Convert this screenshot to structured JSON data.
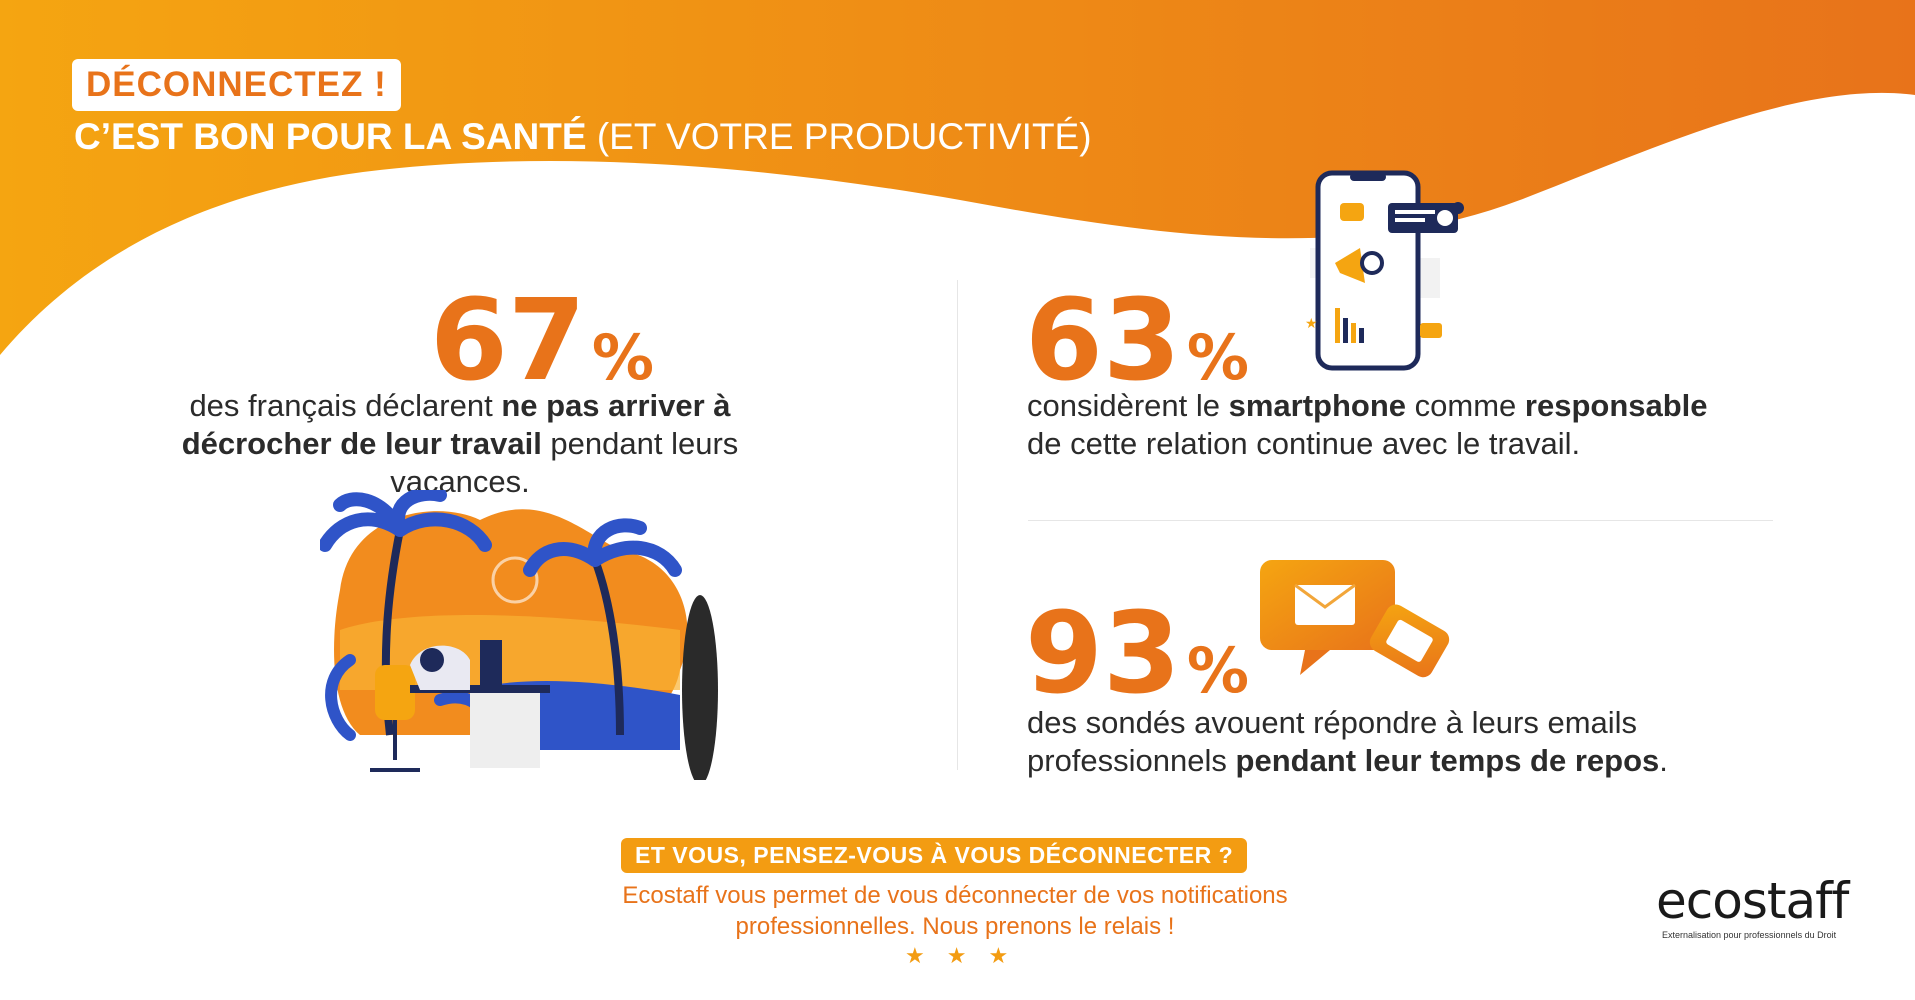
{
  "header": {
    "badge": "DÉCONNECTEZ !",
    "subtitle_bold": "C’EST BON POUR LA SANTÉ",
    "subtitle_light": "(ET VOTRE PRODUCTIVITÉ)"
  },
  "colors": {
    "accent": "#e8731a",
    "gradient_start": "#f5a511",
    "gradient_end": "#e8731a",
    "text": "#2b2b2b"
  },
  "stats": [
    {
      "value": "67",
      "unit": "%",
      "pre": "des français déclarent ",
      "bold1": "ne pas arriver à",
      "bold2": "décrocher de leur travail",
      "post": " pendant leurs vacances."
    },
    {
      "value": "63",
      "unit": "%",
      "pre": "considèrent le ",
      "bold1": "smartphone",
      "mid": " comme ",
      "bold2": "responsable",
      "line2": "de cette relation continue avec le travail."
    },
    {
      "value": "93",
      "unit": "%",
      "line1": "des sondés avouent répondre à leurs emails",
      "pre2": "professionnels ",
      "bold": "pendant leur temps de repos",
      "post": "."
    }
  ],
  "illustrations": [
    "beach-desk-illustration",
    "smartphone-illustration",
    "message-bubbles-illustration"
  ],
  "cta": {
    "label": "ET VOUS, PENSEZ-VOUS À VOUS DÉCONNECTER ?",
    "line1": "Ecostaff vous permet de vous déconnecter de vos notifications",
    "line2": "professionnelles. Nous prenons le relais !",
    "stars": "★★★"
  },
  "logo": {
    "name": "ecostaff",
    "tagline": "Externalisation pour professionnels du Droit"
  }
}
